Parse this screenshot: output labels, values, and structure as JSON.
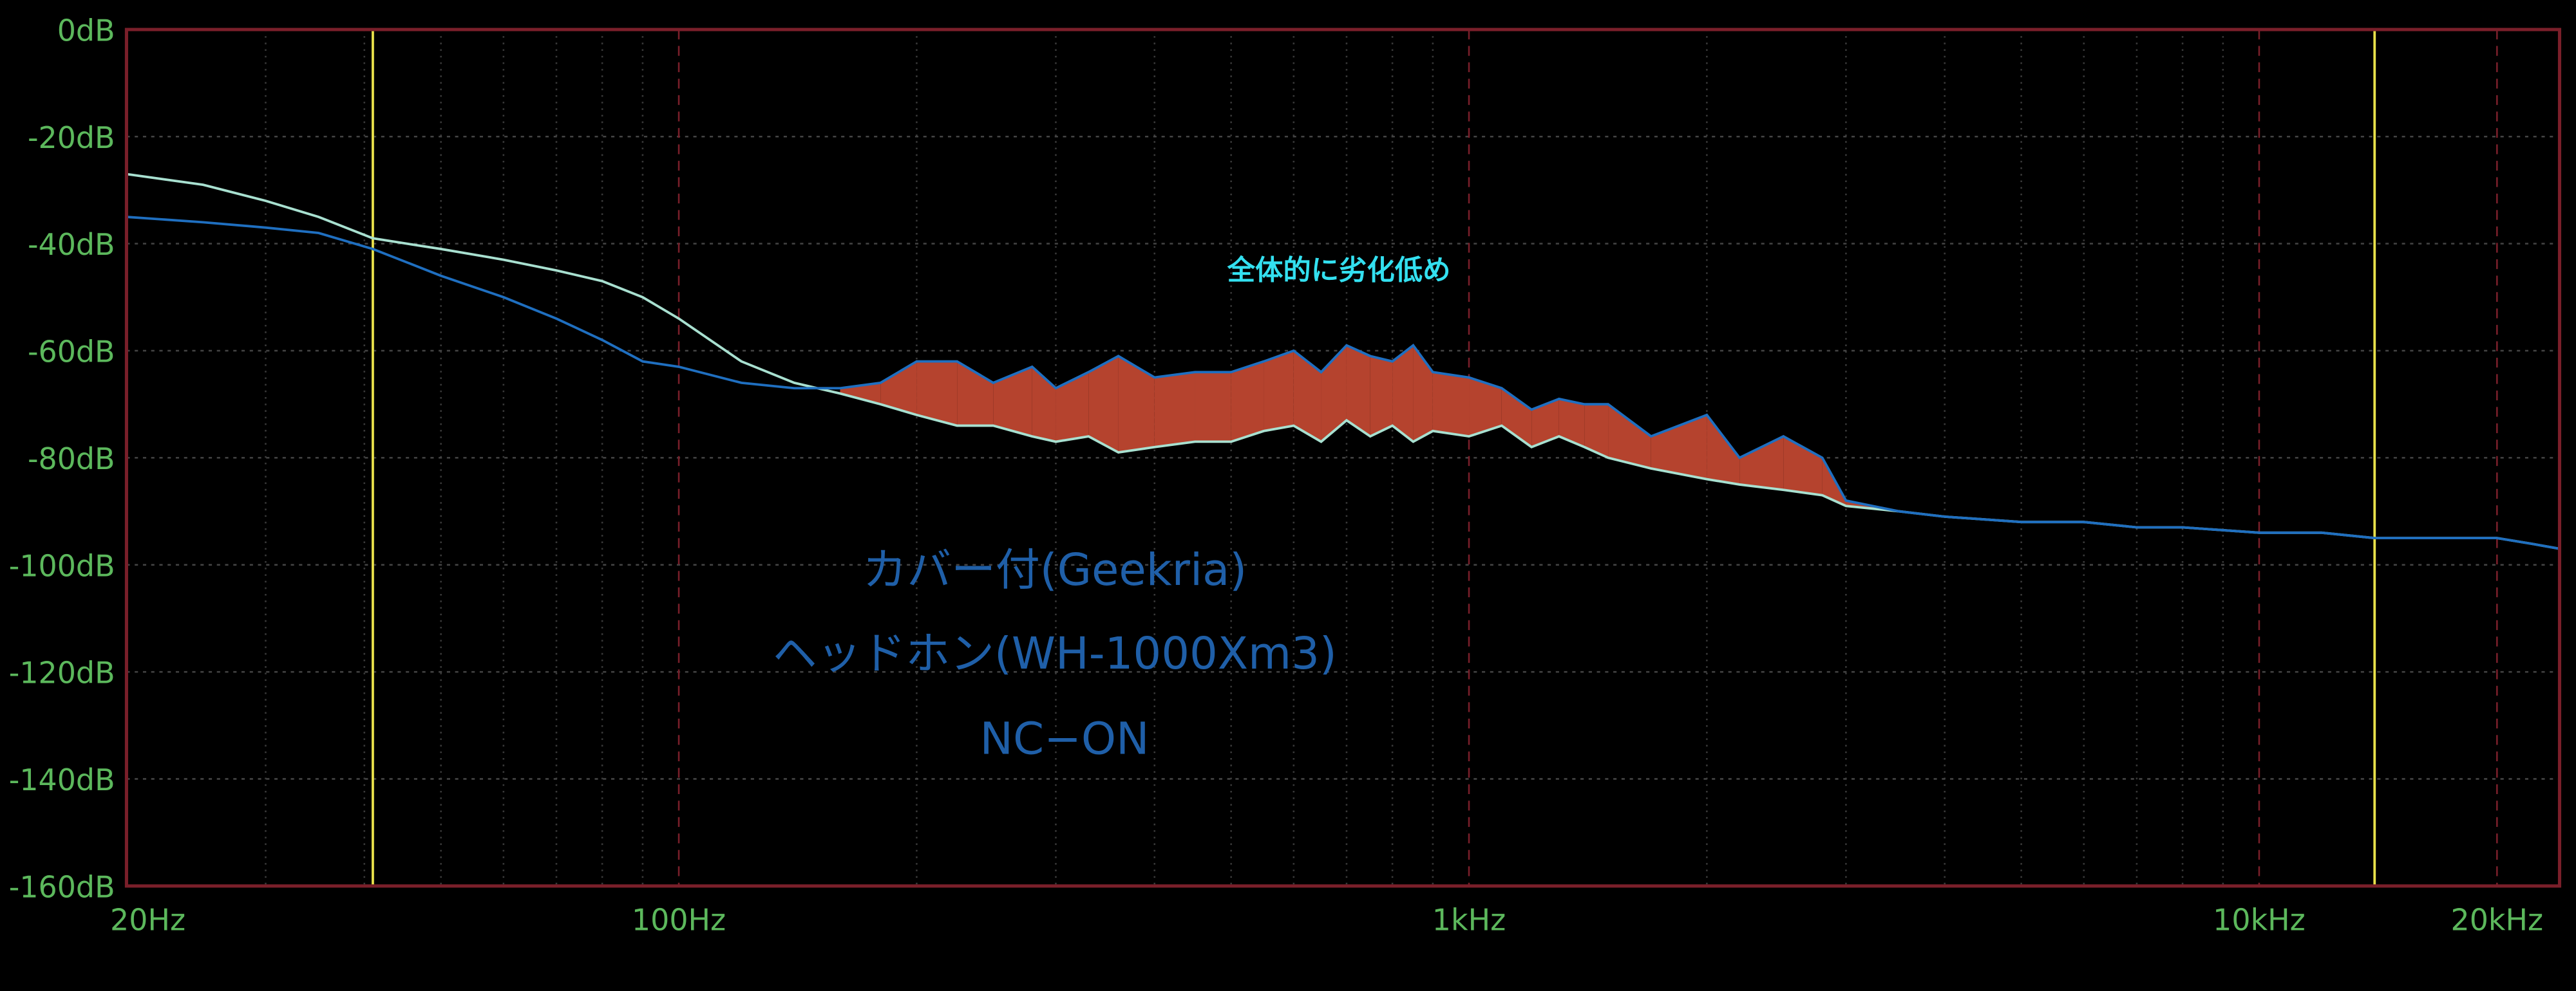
{
  "chart_data": {
    "type": "line",
    "x_scale": "log",
    "x": [
      20,
      25,
      30,
      35,
      41,
      50,
      60,
      70,
      80,
      90,
      100,
      120,
      140,
      160,
      180,
      200,
      225,
      250,
      280,
      300,
      330,
      360,
      400,
      450,
      500,
      550,
      600,
      650,
      700,
      750,
      800,
      850,
      900,
      1000,
      1100,
      1200,
      1300,
      1400,
      1500,
      1700,
      2000,
      2200,
      2500,
      2800,
      3000,
      3500,
      4000,
      5000,
      6000,
      7000,
      8000,
      10000,
      12000,
      14000,
      16000,
      18000,
      20000,
      22000,
      24000
    ],
    "series": [
      {
        "color": "#a8e0d0",
        "values": [
          -27,
          -29,
          -32,
          -35,
          -39,
          -41,
          -43,
          -45,
          -47,
          -50,
          -54,
          -62,
          -66,
          -68,
          -70,
          -72,
          -74,
          -74,
          -76,
          -77,
          -76,
          -79,
          -78,
          -77,
          -77,
          -75,
          -74,
          -77,
          -73,
          -76,
          -74,
          -77,
          -75,
          -76,
          -74,
          -78,
          -76,
          -78,
          -80,
          -82,
          -84,
          -85,
          -86,
          -87,
          -89,
          -90,
          -91,
          -92,
          -92,
          -93,
          -93,
          -94,
          -94,
          -95,
          -95,
          -95,
          -95,
          -96,
          -97
        ]
      },
      {
        "color": "#1f6fc0",
        "values": [
          -35,
          -36,
          -37,
          -38,
          -41,
          -46,
          -50,
          -54,
          -58,
          -62,
          -63,
          -66,
          -67,
          -67,
          -66,
          -62,
          -62,
          -66,
          -63,
          -67,
          -64,
          -61,
          -65,
          -64,
          -64,
          -62,
          -60,
          -64,
          -59,
          -61,
          -62,
          -59,
          -64,
          -65,
          -67,
          -71,
          -69,
          -70,
          -70,
          -76,
          -72,
          -80,
          -76,
          -80,
          -88,
          -90,
          -91,
          -92,
          -92,
          -93,
          -93,
          -94,
          -94,
          -95,
          -95,
          -95,
          -95,
          -96,
          -97
        ]
      }
    ],
    "fill_between_color": "#b5432e",
    "xlim": [
      20,
      24000
    ],
    "xticks": [
      {
        "value": 20,
        "label": "20Hz"
      },
      {
        "value": 100,
        "label": "100Hz"
      },
      {
        "value": 1000,
        "label": "1kHz"
      },
      {
        "value": 10000,
        "label": "10kHz"
      },
      {
        "value": 20000,
        "label": "20kHz"
      }
    ],
    "xminor": [
      30,
      40,
      50,
      60,
      70,
      80,
      90,
      200,
      300,
      400,
      500,
      600,
      700,
      800,
      900,
      2000,
      3000,
      4000,
      5000,
      6000,
      7000,
      8000,
      9000
    ],
    "ylim": [
      -160,
      0
    ],
    "yticks": [
      {
        "value": 0,
        "label": "0dB"
      },
      {
        "value": -20,
        "label": "-20dB"
      },
      {
        "value": -40,
        "label": "-40dB"
      },
      {
        "value": -60,
        "label": "-60dB"
      },
      {
        "value": -80,
        "label": "-80dB"
      },
      {
        "value": -100,
        "label": "-100dB"
      },
      {
        "value": -120,
        "label": "-120dB"
      },
      {
        "value": -140,
        "label": "-140dB"
      },
      {
        "value": -160,
        "label": "-160dB"
      }
    ],
    "markers_x": [
      41,
      14000
    ],
    "marker_color": "#e8e04a",
    "grid": true,
    "annotations": [
      "全体的に劣化低め",
      "カバー付(Geekria)",
      "ヘッドホン(WH-1000Xm3)",
      "NC−ON"
    ]
  }
}
